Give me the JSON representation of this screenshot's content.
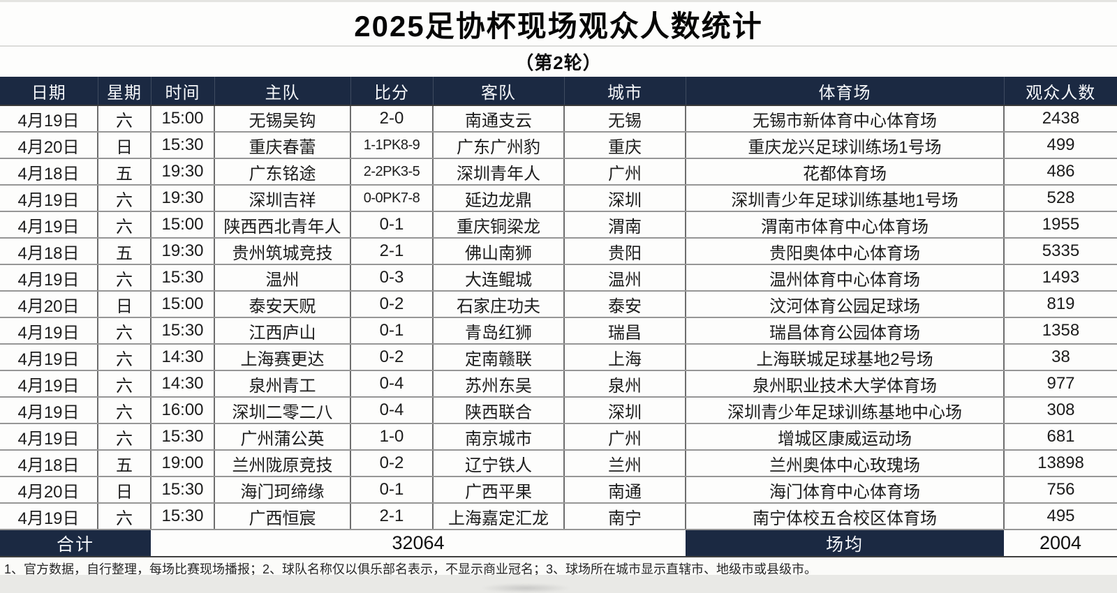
{
  "page": {
    "title": "2025足协杯现场观众人数统计",
    "subtitle": "（第2轮）",
    "footnote": "1、官方数据，自行整理，每场比赛现场播报；2、球队名称仅以俱乐部名表示，不显示商业冠名；3、球场所在城市显示直辖市、地级市或县级市。"
  },
  "colors": {
    "header_bg": "#1b2942",
    "header_text": "#f5f7fa",
    "grid_line": "#969696"
  },
  "table": {
    "columns": [
      "日期",
      "星期",
      "时间",
      "主队",
      "比分",
      "客队",
      "城市",
      "体育场",
      "观众人数"
    ],
    "column_keys": [
      "date",
      "weekday",
      "time",
      "home-team",
      "score",
      "away-team",
      "city",
      "stadium",
      "attendance"
    ],
    "rows": [
      [
        "4月19日",
        "六",
        "15:00",
        "无锡吴钩",
        "2-0",
        "南通支云",
        "无锡",
        "无锡市新体育中心体育场",
        "2438"
      ],
      [
        "4月20日",
        "日",
        "15:30",
        "重庆春蕾",
        "1-1PK8-9",
        "广东广州豹",
        "重庆",
        "重庆龙兴足球训练场1号场",
        "499"
      ],
      [
        "4月18日",
        "五",
        "19:30",
        "广东铭途",
        "2-2PK3-5",
        "深圳青年人",
        "广州",
        "花都体育场",
        "486"
      ],
      [
        "4月19日",
        "六",
        "19:30",
        "深圳吉祥",
        "0-0PK7-8",
        "延边龙鼎",
        "深圳",
        "深圳青少年足球训练基地1号场",
        "528"
      ],
      [
        "4月19日",
        "六",
        "15:00",
        "陕西西北青年人",
        "0-1",
        "重庆铜梁龙",
        "渭南",
        "渭南市体育中心体育场",
        "1955"
      ],
      [
        "4月18日",
        "五",
        "19:30",
        "贵州筑城竞技",
        "2-1",
        "佛山南狮",
        "贵阳",
        "贵阳奥体中心体育场",
        "5335"
      ],
      [
        "4月19日",
        "六",
        "15:30",
        "温州",
        "0-3",
        "大连鲲城",
        "温州",
        "温州体育中心体育场",
        "1493"
      ],
      [
        "4月20日",
        "日",
        "15:00",
        "泰安天贶",
        "0-2",
        "石家庄功夫",
        "泰安",
        "汶河体育公园足球场",
        "819"
      ],
      [
        "4月19日",
        "六",
        "15:30",
        "江西庐山",
        "0-1",
        "青岛红狮",
        "瑞昌",
        "瑞昌体育公园体育场",
        "1358"
      ],
      [
        "4月19日",
        "六",
        "14:30",
        "上海赛更达",
        "0-2",
        "定南赣联",
        "上海",
        "上海联城足球基地2号场",
        "38"
      ],
      [
        "4月19日",
        "六",
        "14:30",
        "泉州青工",
        "0-4",
        "苏州东吴",
        "泉州",
        "泉州职业技术大学体育场",
        "977"
      ],
      [
        "4月19日",
        "六",
        "16:00",
        "深圳二零二八",
        "0-4",
        "陕西联合",
        "深圳",
        "深圳青少年足球训练基地中心场",
        "308"
      ],
      [
        "4月19日",
        "六",
        "15:30",
        "广州蒲公英",
        "1-0",
        "南京城市",
        "广州",
        "增城区康威运动场",
        "681"
      ],
      [
        "4月18日",
        "五",
        "19:00",
        "兰州陇原竞技",
        "0-2",
        "辽宁铁人",
        "兰州",
        "兰州奥体中心玫瑰场",
        "13898"
      ],
      [
        "4月20日",
        "日",
        "15:30",
        "海门珂缔缘",
        "0-1",
        "广西平果",
        "南通",
        "海门体育中心体育场",
        "756"
      ],
      [
        "4月19日",
        "六",
        "15:30",
        "广西恒宸",
        "2-1",
        "上海嘉定汇龙",
        "南宁",
        "南宁体校五合校区体育场",
        "495"
      ]
    ],
    "summary": {
      "total_label": "合计",
      "total_value": "32064",
      "average_label": "场均",
      "average_value": "2004"
    }
  }
}
